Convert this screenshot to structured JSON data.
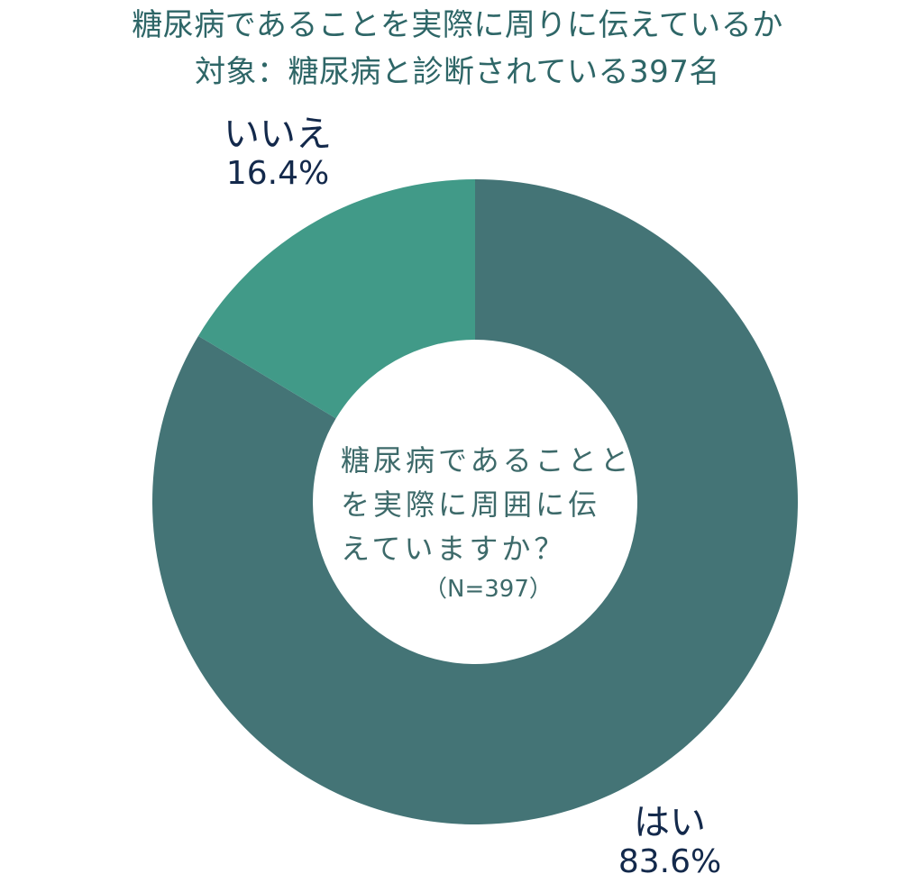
{
  "title_line1": "糖尿病であることを実際に周りに伝えているか",
  "title_line2": "対象：糖尿病と診断されている397名",
  "center_lines": [
    "糖尿病であることと",
    "を実際に周囲に伝",
    "えていますか？"
  ],
  "center_n": "（N=397）",
  "colors": {
    "yes": "#447476",
    "no": "#419a88",
    "title": "#2e6667",
    "label": "#13294b"
  },
  "chart_data": {
    "type": "pie",
    "title": "糖尿病であることを実際に周りに伝えているか",
    "subtitle": "対象：糖尿病と診断されている397名",
    "slices": [
      {
        "label": "はい",
        "value": 83.6,
        "value_label": "83.6%",
        "color": "#447476"
      },
      {
        "label": "いいえ",
        "value": 16.4,
        "value_label": "16.4%",
        "color": "#419a88"
      }
    ],
    "start_angle_deg": 0,
    "direction": "clockwise",
    "legend": "none",
    "donut": true
  }
}
